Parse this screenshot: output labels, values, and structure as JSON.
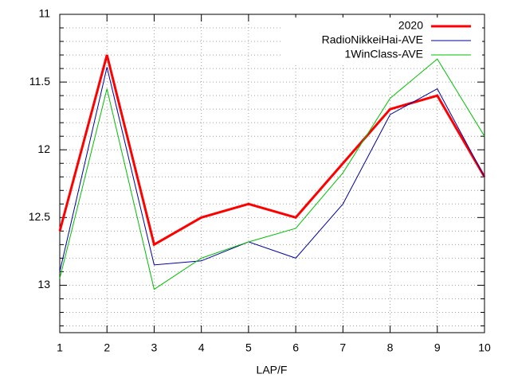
{
  "chart_data": {
    "type": "line",
    "x_label": "LAP/F",
    "x": [
      1,
      2,
      3,
      4,
      5,
      6,
      7,
      8,
      9,
      10
    ],
    "xlim": [
      1,
      10
    ],
    "xticks": [
      1,
      2,
      3,
      4,
      5,
      6,
      7,
      8,
      9,
      10
    ],
    "ylim": [
      11,
      13.35
    ],
    "y_reversed": true,
    "yticks": [
      11,
      11.5,
      12,
      12.5,
      13
    ],
    "y_minor_ticks": [
      11.1,
      11.2,
      11.3,
      11.4,
      11.6,
      11.7,
      11.8,
      11.9,
      12.1,
      12.2,
      12.3,
      12.4,
      12.6,
      12.7,
      12.8,
      12.9,
      13.1,
      13.2,
      13.3
    ],
    "grid": true,
    "legend_position": "top-right",
    "series": [
      {
        "name": "2020",
        "color": "#ff0000",
        "line_width": 3,
        "values": [
          12.6,
          11.3,
          12.7,
          12.5,
          12.4,
          12.5,
          12.1,
          11.7,
          11.6,
          12.2
        ]
      },
      {
        "name": "RadioNikkeiHai-AVE",
        "color": "#0000a0",
        "line_width": 1,
        "values": [
          12.9,
          11.39,
          12.85,
          12.82,
          12.68,
          12.8,
          12.4,
          11.74,
          11.55,
          12.2
        ]
      },
      {
        "name": "1WinClass-AVE",
        "color": "#00c000",
        "line_width": 1,
        "values": [
          12.95,
          11.55,
          13.03,
          12.8,
          12.68,
          12.58,
          12.17,
          11.62,
          11.33,
          11.9
        ]
      }
    ]
  }
}
